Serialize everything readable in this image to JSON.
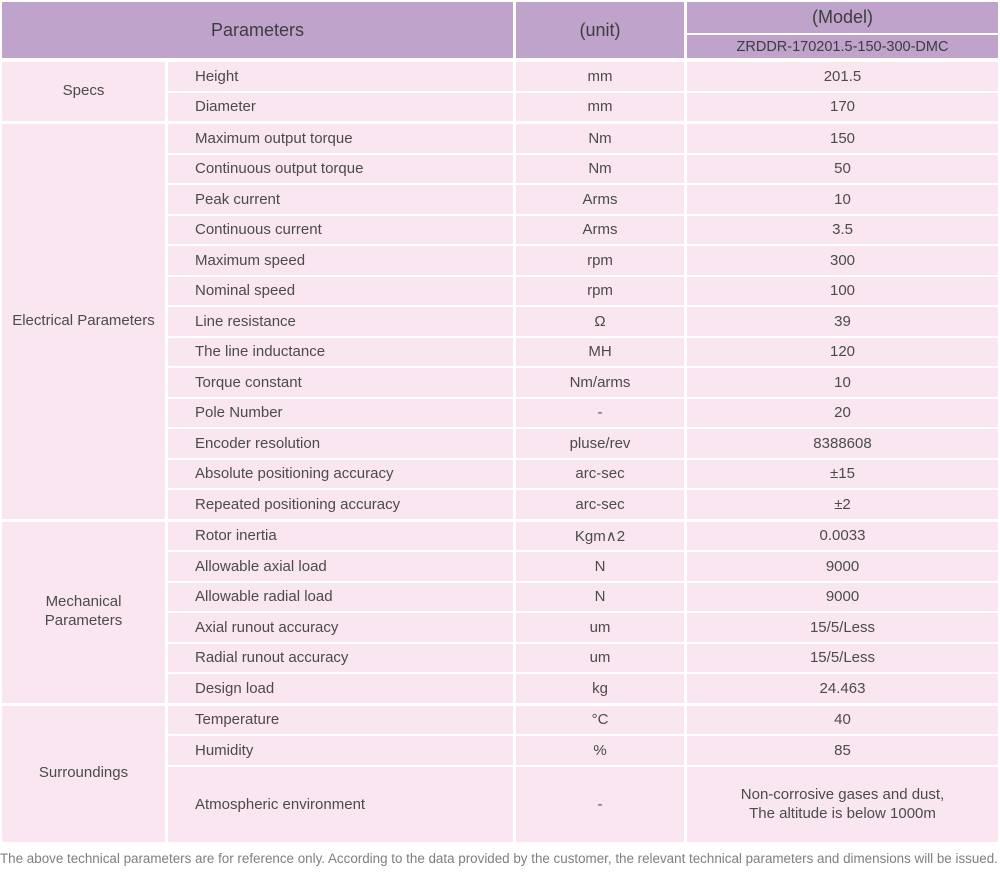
{
  "colors": {
    "header_bg": "#c0a3cb",
    "row_bg": "#fae6f0",
    "grid_line": "#ffffff",
    "cell_text": "#4b4b4b",
    "footer_text": "#7f7f7f"
  },
  "header": {
    "parameters_label": "Parameters",
    "unit_label": "(unit)",
    "model_label": "(Model)",
    "model_value": "ZRDDR-170201.5-150-300-DMC"
  },
  "sections": [
    {
      "category": "Specs",
      "rows": [
        {
          "name": "Height",
          "unit": "mm",
          "value": "201.5"
        },
        {
          "name": "Diameter",
          "unit": "mm",
          "value": "170"
        }
      ]
    },
    {
      "category": "Electrical Parameters",
      "rows": [
        {
          "name": "Maximum output torque",
          "unit": "Nm",
          "value": "150"
        },
        {
          "name": "Continuous output torque",
          "unit": "Nm",
          "value": "50"
        },
        {
          "name": "Peak current",
          "unit": "Arms",
          "value": "10"
        },
        {
          "name": "Continuous current",
          "unit": "Arms",
          "value": "3.5"
        },
        {
          "name": "Maximum speed",
          "unit": "rpm",
          "value": "300"
        },
        {
          "name": "Nominal speed",
          "unit": "rpm",
          "value": "100"
        },
        {
          "name": "Line resistance",
          "unit": "Ω",
          "value": "39"
        },
        {
          "name": "The line inductance",
          "unit": "MH",
          "value": "120"
        },
        {
          "name": "Torque constant",
          "unit": "Nm/arms",
          "value": "10"
        },
        {
          "name": "Pole Number",
          "unit": "-",
          "value": "20"
        },
        {
          "name": "Encoder resolution",
          "unit": "pluse/rev",
          "value": "8388608"
        },
        {
          "name": "Absolute positioning accuracy",
          "unit": "arc-sec",
          "value": "±15"
        },
        {
          "name": "Repeated positioning accuracy",
          "unit": "arc-sec",
          "value": "±2"
        }
      ]
    },
    {
      "category": "Mechanical Parameters",
      "rows": [
        {
          "name": "Rotor inertia",
          "unit": "Kgm∧2",
          "value": "0.0033"
        },
        {
          "name": "Allowable axial load",
          "unit": "N",
          "value": "9000"
        },
        {
          "name": "Allowable radial load",
          "unit": "N",
          "value": "9000"
        },
        {
          "name": "Axial runout accuracy",
          "unit": "um",
          "value": "15/5/Less"
        },
        {
          "name": "Radial runout accuracy",
          "unit": "um",
          "value": "15/5/Less"
        },
        {
          "name": "Design load",
          "unit": "kg",
          "value": "24.463"
        }
      ]
    },
    {
      "category": "Surroundings",
      "rows": [
        {
          "name": "Temperature",
          "unit": "°C",
          "value": "40"
        },
        {
          "name": "Humidity",
          "unit": "%",
          "value": "85"
        },
        {
          "name": "Atmospheric environment",
          "unit": "-",
          "value": "Non-corrosive gases and dust,\nThe altitude is below 1000m",
          "tall": true
        }
      ]
    }
  ],
  "footer_note": "The above technical parameters are for reference only. According to the data provided by the customer, the relevant technical parameters and dimensions will be issued."
}
